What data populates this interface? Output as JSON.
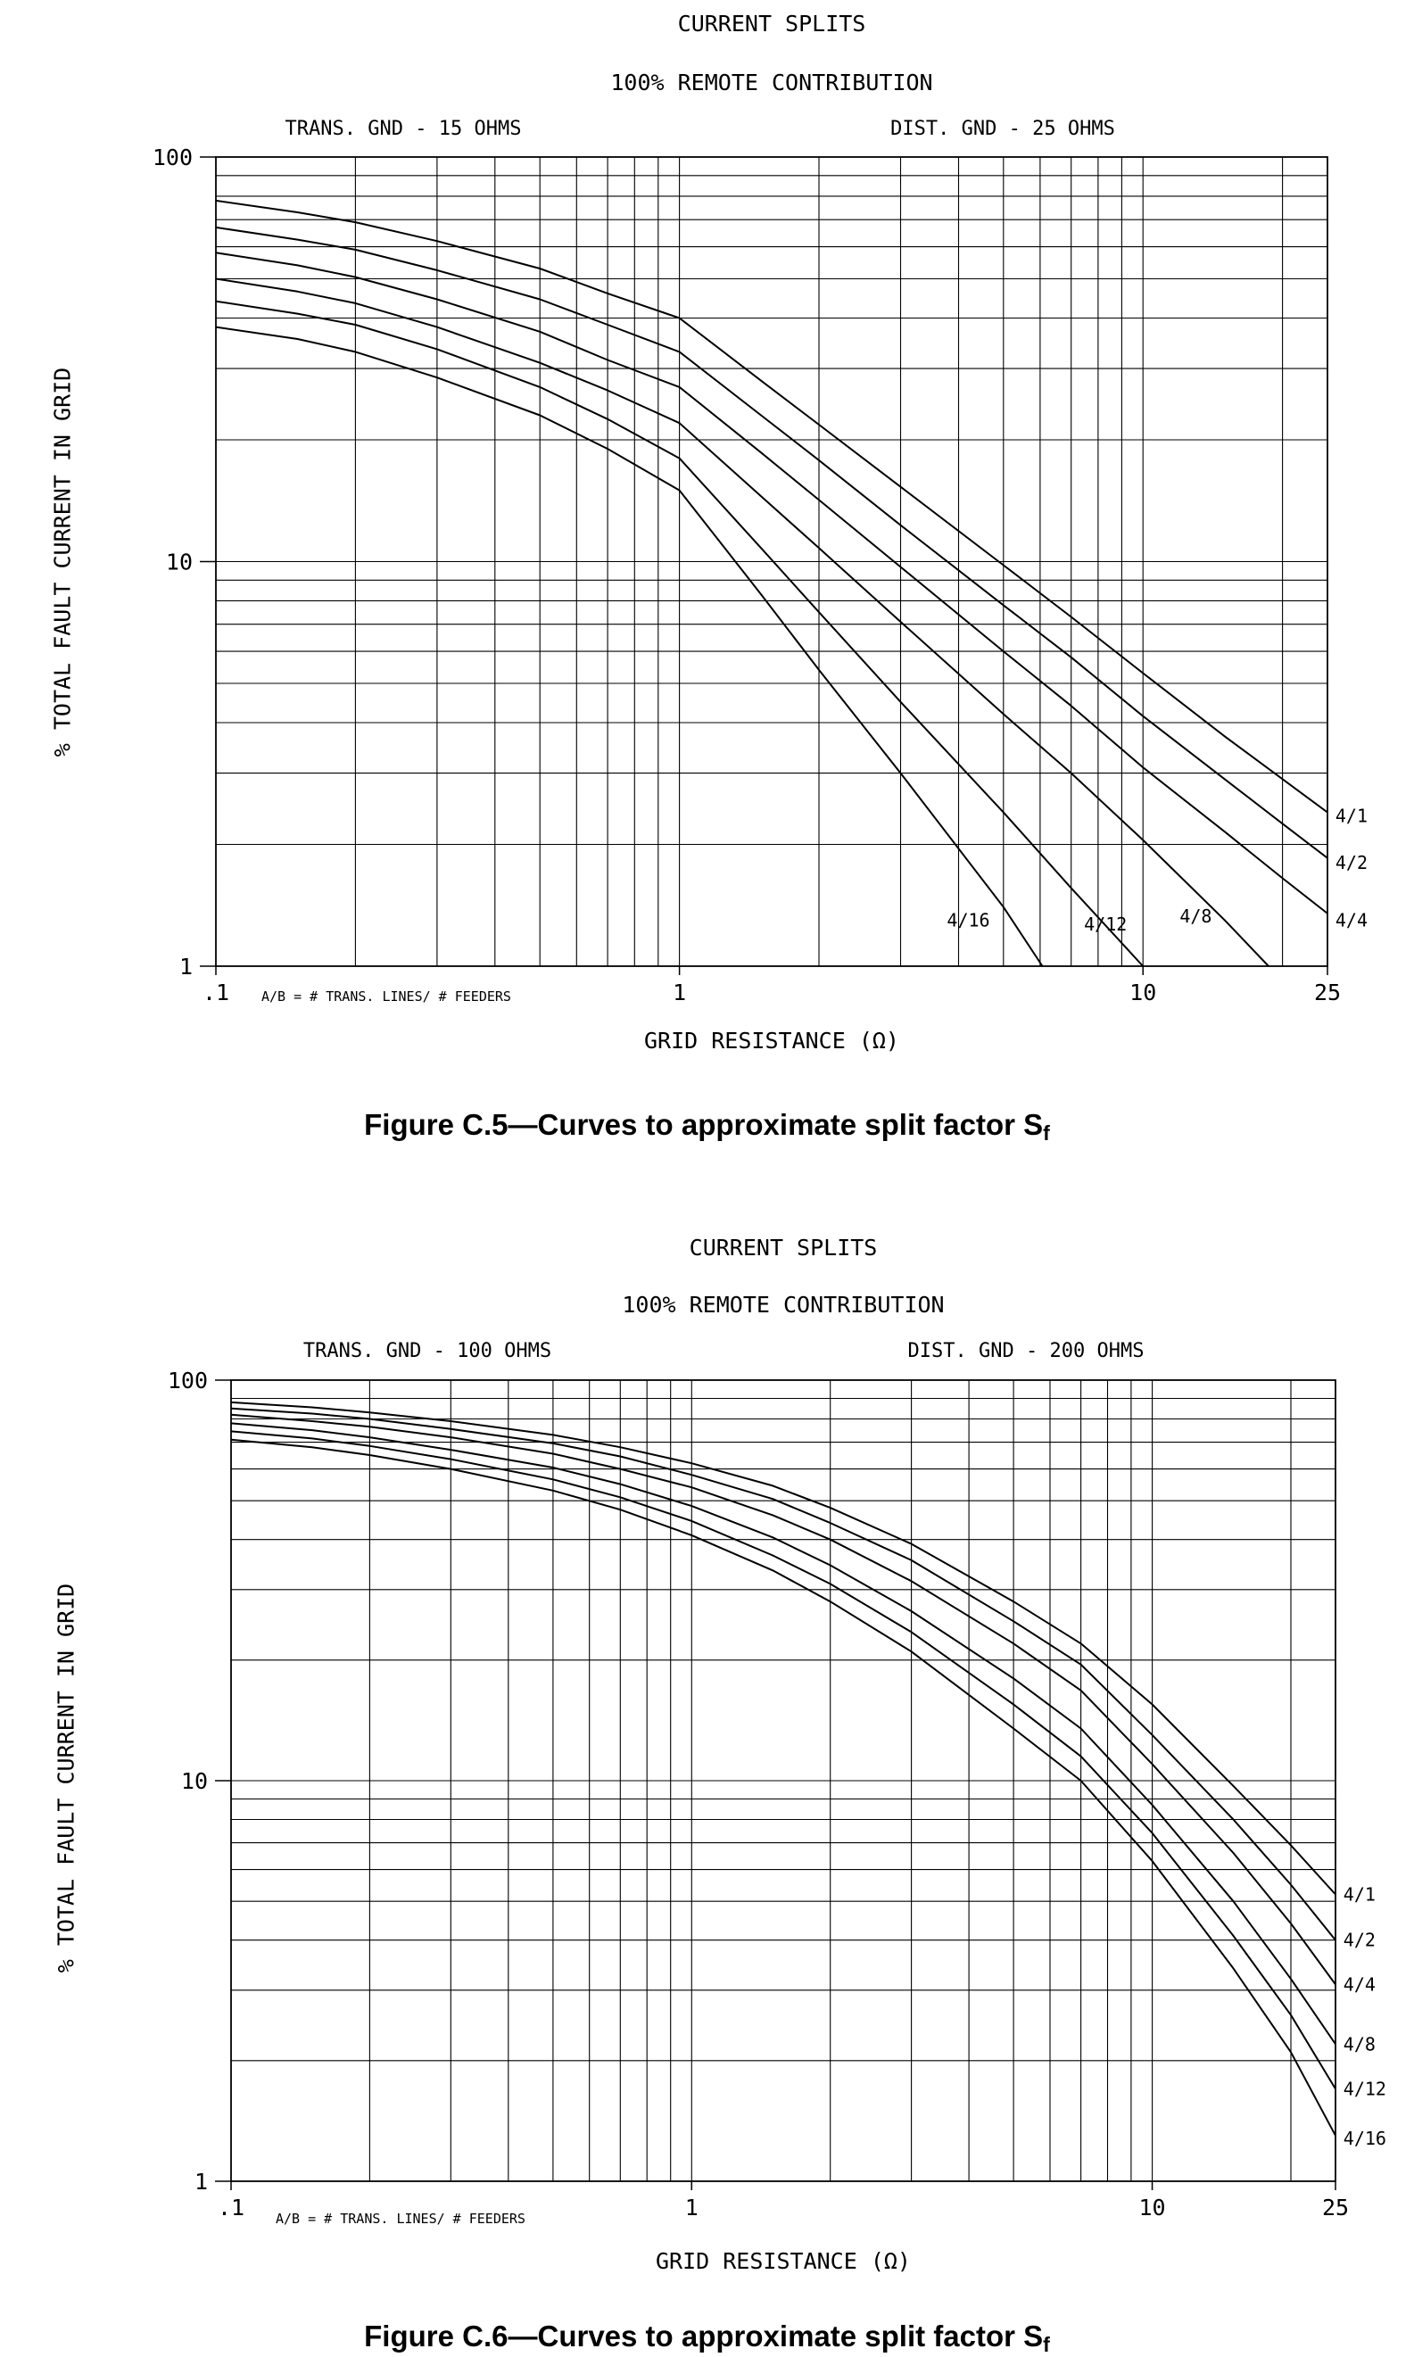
{
  "page": {
    "background": "#ffffff",
    "ink": "#000000"
  },
  "chart_data": [
    {
      "type": "line",
      "title": "CURRENT SPLITS",
      "subtitle": "100% REMOTE CONTRIBUTION",
      "condition_left": "TRANS. GND - 15 OHMS",
      "condition_right": "DIST. GND - 25 OHMS",
      "xlabel": "GRID RESISTANCE (Ω)",
      "ylabel": "% TOTAL FAULT CURRENT IN GRID",
      "axis_note": "A/B = # TRANS. LINES/ # FEEDERS",
      "caption": "Figure C.5—Curves to approximate split factor S",
      "caption_subscript": "f",
      "x_scale": "log",
      "y_scale": "log",
      "xlim": [
        0.1,
        25
      ],
      "ylim": [
        1,
        100
      ],
      "grid": true,
      "legend_position": "inline-labels",
      "x_ticks": [
        {
          "v": 0.1,
          "label": ".1"
        },
        {
          "v": 1,
          "label": "1"
        },
        {
          "v": 10,
          "label": "10"
        },
        {
          "v": 25,
          "label": "25"
        }
      ],
      "y_ticks": [
        {
          "v": 1,
          "label": "1"
        },
        {
          "v": 10,
          "label": "10"
        },
        {
          "v": 100,
          "label": "100"
        }
      ],
      "x": [
        0.1,
        0.15,
        0.2,
        0.3,
        0.5,
        0.7,
        1,
        1.5,
        2,
        3,
        5,
        7,
        10,
        15,
        20,
        25
      ],
      "series": [
        {
          "name": "4/1",
          "values": [
            78,
            73,
            69,
            62,
            53,
            46,
            40,
            28,
            21.8,
            15.3,
            9.8,
            7.3,
            5.3,
            3.7,
            2.9,
            2.4
          ],
          "label_x": 26,
          "label_v": 2.35
        },
        {
          "name": "4/2",
          "values": [
            67,
            62.5,
            59,
            52.5,
            44.5,
            38.5,
            33,
            23,
            17.8,
            12.3,
            7.8,
            5.8,
            4.15,
            2.9,
            2.25,
            1.85
          ],
          "label_x": 26,
          "label_v": 1.8
        },
        {
          "name": "4/4",
          "values": [
            58,
            54,
            50.5,
            44.5,
            37,
            31.5,
            27,
            18.6,
            14.2,
            9.7,
            6.0,
            4.4,
            3.1,
            2.15,
            1.65,
            1.35
          ],
          "label_x": 26,
          "label_v": 1.3
        },
        {
          "name": "4/8",
          "values": [
            50,
            46.5,
            43.5,
            38,
            31,
            26.5,
            22,
            14.5,
            10.8,
            7.1,
            4.2,
            3.0,
            2.05,
            1.3,
            0.92,
            null
          ],
          "label_x": 13,
          "label_v": 1.33
        },
        {
          "name": "4/12",
          "values": [
            44,
            41,
            38.5,
            33.5,
            27,
            22.5,
            18,
            10.8,
            7.5,
            4.5,
            2.4,
            1.56,
            1.0,
            null,
            null,
            null
          ],
          "label_x": 8.3,
          "label_v": 1.27
        },
        {
          "name": "4/16",
          "values": [
            38,
            35.5,
            33,
            28.5,
            23,
            19,
            15,
            8.3,
            5.4,
            3.0,
            1.4,
            0.78,
            null,
            null,
            null,
            null
          ],
          "label_x": 4.2,
          "label_v": 1.3
        }
      ]
    },
    {
      "type": "line",
      "title": "CURRENT SPLITS",
      "subtitle": "100% REMOTE CONTRIBUTION",
      "condition_left": "TRANS. GND - 100 OHMS",
      "condition_right": "DIST. GND - 200 OHMS",
      "xlabel": "GRID RESISTANCE (Ω)",
      "ylabel": "% TOTAL FAULT CURRENT IN GRID",
      "axis_note": "A/B = # TRANS. LINES/ # FEEDERS",
      "caption": "Figure C.6—Curves to approximate split factor S",
      "caption_subscript": "f",
      "x_scale": "log",
      "y_scale": "log",
      "xlim": [
        0.1,
        25
      ],
      "ylim": [
        1,
        100
      ],
      "grid": true,
      "legend_position": "inline-labels",
      "x_ticks": [
        {
          "v": 0.1,
          "label": ".1"
        },
        {
          "v": 1,
          "label": "1"
        },
        {
          "v": 10,
          "label": "10"
        },
        {
          "v": 25,
          "label": "25"
        }
      ],
      "y_ticks": [
        {
          "v": 1,
          "label": "1"
        },
        {
          "v": 10,
          "label": "10"
        },
        {
          "v": 100,
          "label": "100"
        }
      ],
      "x": [
        0.1,
        0.15,
        0.2,
        0.3,
        0.5,
        0.7,
        1,
        1.5,
        2,
        3,
        5,
        7,
        10,
        15,
        20,
        25
      ],
      "series": [
        {
          "name": "4/1",
          "values": [
            88,
            85.5,
            83,
            79,
            73,
            68,
            62,
            54.5,
            48,
            39,
            28,
            22,
            15.5,
            9.7,
            6.9,
            5.2
          ],
          "label_x": 26,
          "label_v": 5.2
        },
        {
          "name": "4/2",
          "values": [
            85,
            82.5,
            80,
            75.5,
            69.5,
            64.5,
            58,
            50.5,
            44,
            35.5,
            25,
            19.5,
            13,
            8.0,
            5.5,
            4.0
          ],
          "label_x": 26,
          "label_v": 4.0
        },
        {
          "name": "4/4",
          "values": [
            82,
            79,
            76.5,
            72,
            65.5,
            60,
            54,
            46,
            40,
            31.5,
            22,
            16.8,
            11,
            6.6,
            4.4,
            3.1
          ],
          "label_x": 26,
          "label_v": 3.1
        },
        {
          "name": "4/8",
          "values": [
            78,
            75,
            72,
            67,
            60.5,
            55,
            48.5,
            40.5,
            34.5,
            26.5,
            18,
            13.5,
            8.7,
            5.0,
            3.2,
            2.2
          ],
          "label_x": 26,
          "label_v": 2.2
        },
        {
          "name": "4/12",
          "values": [
            74.5,
            71.5,
            68.5,
            63.5,
            56.5,
            51,
            44.5,
            36.5,
            31,
            23.5,
            15.5,
            11.5,
            7.4,
            4.1,
            2.6,
            1.7
          ],
          "label_x": 26,
          "label_v": 1.7
        },
        {
          "name": "4/16",
          "values": [
            71,
            68,
            65,
            60,
            53,
            47.5,
            41,
            33.5,
            28,
            21,
            13.5,
            10,
            6.3,
            3.4,
            2.1,
            1.3
          ],
          "label_x": 26,
          "label_v": 1.28
        }
      ]
    }
  ]
}
